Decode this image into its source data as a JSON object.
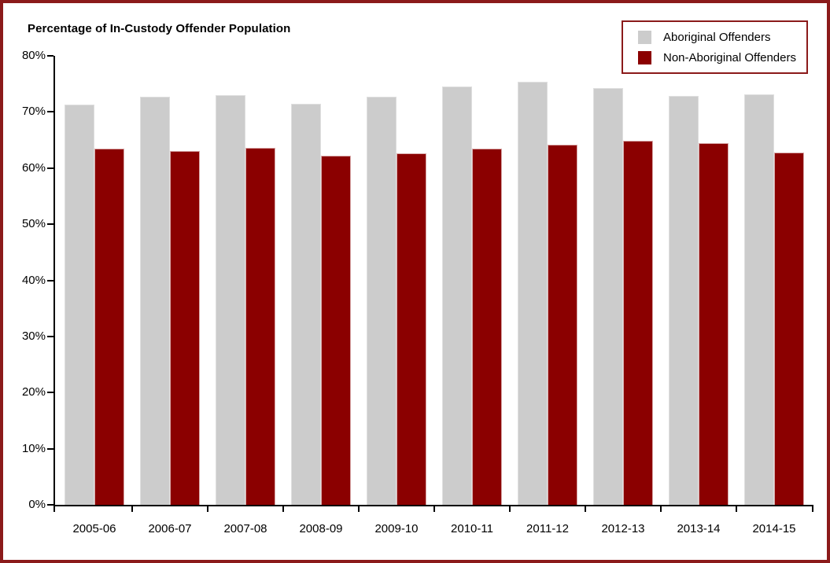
{
  "frame": {
    "border_color": "#8b1a1a",
    "background": "#ffffff"
  },
  "chart_data": {
    "type": "bar",
    "title": "Percentage of In-Custody Offender Population",
    "categories": [
      "2005-06",
      "2006-07",
      "2007-08",
      "2008-09",
      "2009-10",
      "2010-11",
      "2011-12",
      "2012-13",
      "2013-14",
      "2014-15"
    ],
    "series": [
      {
        "name": "Aboriginal Offenders",
        "color": "#cccccc",
        "edge_color": "#dfdfdf",
        "values": [
          71.3,
          72.7,
          73.0,
          71.5,
          72.7,
          74.6,
          75.4,
          74.3,
          72.9,
          73.2
        ]
      },
      {
        "name": "Non-Aboriginal Offenders",
        "color": "#8b0000",
        "edge_color": "#d8a9a9",
        "values": [
          63.4,
          63.0,
          63.6,
          62.2,
          62.6,
          63.4,
          64.1,
          64.8,
          64.5,
          62.8
        ]
      }
    ],
    "xlabel": "",
    "ylabel": "",
    "ylim": [
      0,
      80
    ],
    "ytick_step": 10,
    "ytick_suffix": "%",
    "grid": false,
    "legend_position": "top-right",
    "legend_border_color": "#8b1a1a"
  }
}
